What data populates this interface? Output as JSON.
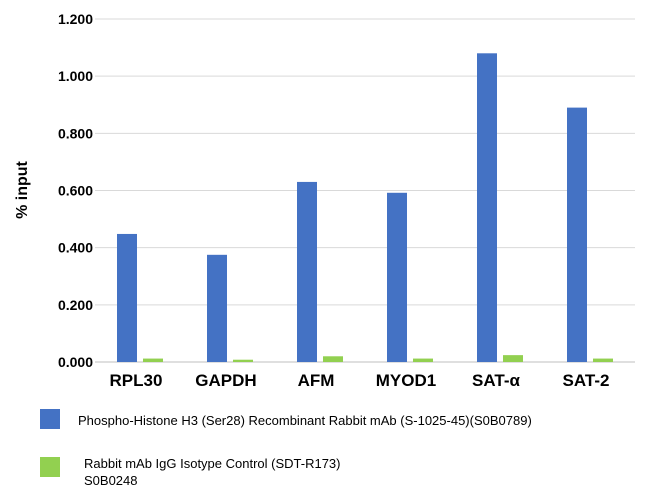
{
  "chart_data": {
    "type": "bar",
    "categories": [
      "RPL30",
      "GAPDH",
      "AFM",
      "MYOD1",
      "SAT-α",
      "SAT-2"
    ],
    "series": [
      {
        "name": "Phospho-Histone H3 (Ser28) Recombinant Rabbit mAb (S-1025-45)(S0B0789)",
        "color": "#4472c4",
        "values": [
          0.448,
          0.375,
          0.63,
          0.592,
          1.08,
          0.89
        ]
      },
      {
        "name": "Rabbit mAb IgG Isotype Control (SDT-R173) S0B0248",
        "name_lines": [
          "Rabbit mAb IgG Isotype Control (SDT-R173)",
          "S0B0248"
        ],
        "color": "#92d050",
        "values": [
          0.012,
          0.008,
          0.02,
          0.012,
          0.024,
          0.012
        ]
      }
    ],
    "yticks": [
      "0.000",
      "0.200",
      "0.400",
      "0.600",
      "0.800",
      "1.000",
      "1.200"
    ],
    "ylim": [
      0,
      1.2
    ],
    "ylabel": "% input",
    "xlabel": "",
    "title": "",
    "grid": true,
    "legend_position": "bottom"
  }
}
